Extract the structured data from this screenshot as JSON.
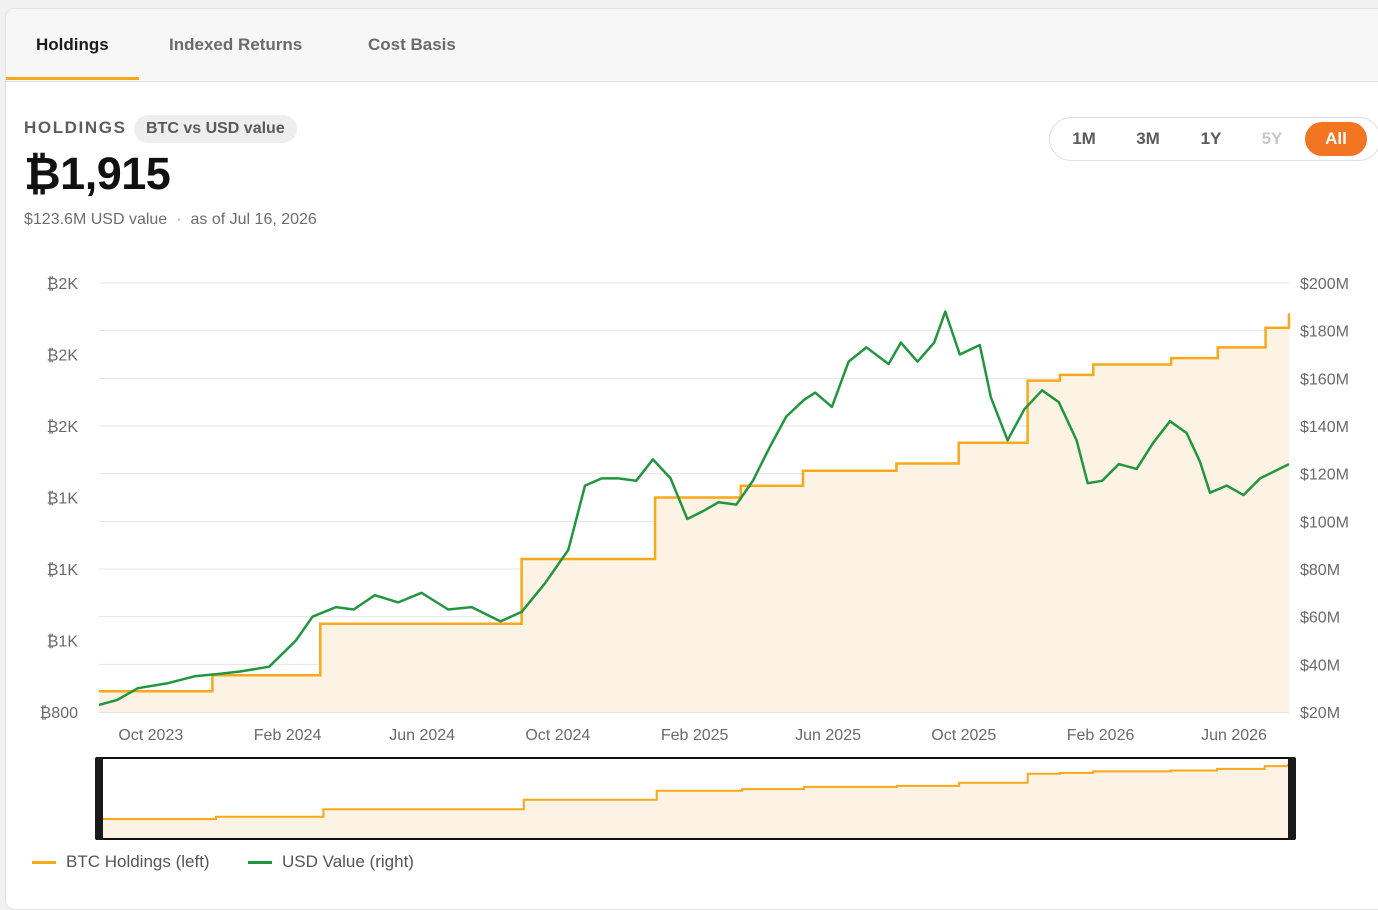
{
  "tabs": [
    "Holdings",
    "Indexed Returns",
    "Cost Basis"
  ],
  "header": {
    "label": "HOLDINGS",
    "badge": "BTC vs USD value",
    "value": "₿1,915",
    "usd_value": "$123.6M USD value",
    "separator": "·",
    "as_of": "as of Jul 16, 2026"
  },
  "ranges": {
    "items": [
      "1M",
      "3M",
      "1Y",
      "5Y",
      "All"
    ],
    "active": "All",
    "disabled": [
      "5Y"
    ]
  },
  "colors": {
    "btc_line": "#f7a81b",
    "btc_fill": "#fdf3e4",
    "usd_line": "#21963f",
    "active_range": "#f27521",
    "grid": "#e6e6e6"
  },
  "chart_data": {
    "type": "line",
    "x_ticks": [
      "Oct 2023",
      "Feb 2024",
      "Jun 2024",
      "Oct 2024",
      "Feb 2025",
      "Jun 2025",
      "Oct 2025",
      "Feb 2026",
      "Jun 2026"
    ],
    "y_left_ticks": [
      "₿800",
      "₿1K",
      "₿1K",
      "₿1K",
      "₿2K",
      "₿2K",
      "₿2K"
    ],
    "y_right_ticks": [
      "$20M",
      "$40M",
      "$60M",
      "$80M",
      "$100M",
      "$120M",
      "$140M",
      "$160M",
      "$180M",
      "$200M"
    ],
    "y_left_range": [
      800,
      2000
    ],
    "y_right_range": [
      20,
      200
    ],
    "grid": true,
    "series": [
      {
        "name": "BTC Holdings (left)",
        "axis": "left",
        "shape": "step",
        "points": [
          [
            "2023-09-15",
            858
          ],
          [
            "2023-12-26",
            858
          ],
          [
            "2023-12-26",
            903
          ],
          [
            "2024-04-01",
            903
          ],
          [
            "2024-04-01",
            1047
          ],
          [
            "2024-09-29",
            1047
          ],
          [
            "2024-09-29",
            1228
          ],
          [
            "2025-01-27",
            1228
          ],
          [
            "2025-01-27",
            1400
          ],
          [
            "2025-04-14",
            1400
          ],
          [
            "2025-04-14",
            1433
          ],
          [
            "2025-06-09",
            1433
          ],
          [
            "2025-06-09",
            1475
          ],
          [
            "2025-09-01",
            1475
          ],
          [
            "2025-09-01",
            1495
          ],
          [
            "2025-10-27",
            1495
          ],
          [
            "2025-10-27",
            1553
          ],
          [
            "2025-12-28",
            1553
          ],
          [
            "2025-12-28",
            1727
          ],
          [
            "2026-01-26",
            1727
          ],
          [
            "2026-01-26",
            1743
          ],
          [
            "2026-02-25",
            1743
          ],
          [
            "2026-02-25",
            1772
          ],
          [
            "2026-05-06",
            1772
          ],
          [
            "2026-05-06",
            1790
          ],
          [
            "2026-06-17",
            1790
          ],
          [
            "2026-06-17",
            1820
          ],
          [
            "2026-07-30",
            1820
          ],
          [
            "2026-07-30",
            1875
          ],
          [
            "2026-08-20",
            1875
          ],
          [
            "2026-08-20",
            1915
          ]
        ]
      },
      {
        "name": "USD Value (right)",
        "axis": "right",
        "shape": "line",
        "points": [
          [
            "2023-09-15",
            23
          ],
          [
            "2023-10-01",
            25
          ],
          [
            "2023-10-20",
            30
          ],
          [
            "2023-11-15",
            32
          ],
          [
            "2023-12-10",
            35
          ],
          [
            "2024-01-01",
            36
          ],
          [
            "2024-01-20",
            37
          ],
          [
            "2024-02-15",
            39
          ],
          [
            "2024-03-10",
            50
          ],
          [
            "2024-03-25",
            60
          ],
          [
            "2024-04-15",
            64
          ],
          [
            "2024-05-01",
            63
          ],
          [
            "2024-05-20",
            69
          ],
          [
            "2024-06-10",
            66
          ],
          [
            "2024-07-01",
            70
          ],
          [
            "2024-07-25",
            63
          ],
          [
            "2024-08-15",
            64
          ],
          [
            "2024-09-10",
            58
          ],
          [
            "2024-09-29",
            62
          ],
          [
            "2024-10-20",
            74
          ],
          [
            "2024-11-10",
            88
          ],
          [
            "2024-11-25",
            115
          ],
          [
            "2024-12-10",
            118
          ],
          [
            "2024-12-25",
            118
          ],
          [
            "2025-01-10",
            117
          ],
          [
            "2025-01-25",
            126
          ],
          [
            "2025-02-10",
            118
          ],
          [
            "2025-02-25",
            101
          ],
          [
            "2025-03-10",
            104
          ],
          [
            "2025-03-25",
            108
          ],
          [
            "2025-04-10",
            107
          ],
          [
            "2025-04-25",
            117
          ],
          [
            "2025-05-10",
            131
          ],
          [
            "2025-05-25",
            144
          ],
          [
            "2025-06-10",
            151
          ],
          [
            "2025-06-20",
            154
          ],
          [
            "2025-07-05",
            148
          ],
          [
            "2025-07-20",
            167
          ],
          [
            "2025-08-05",
            173
          ],
          [
            "2025-08-25",
            166
          ],
          [
            "2025-09-05",
            175
          ],
          [
            "2025-09-20",
            167
          ],
          [
            "2025-10-05",
            175
          ],
          [
            "2025-10-15",
            188
          ],
          [
            "2025-10-28",
            170
          ],
          [
            "2025-11-15",
            174
          ],
          [
            "2025-11-25",
            152
          ],
          [
            "2025-12-10",
            134
          ],
          [
            "2025-12-25",
            147
          ],
          [
            "2026-01-10",
            155
          ],
          [
            "2026-01-25",
            150
          ],
          [
            "2026-02-10",
            134
          ],
          [
            "2026-02-20",
            116
          ],
          [
            "2026-03-05",
            117
          ],
          [
            "2026-03-20",
            124
          ],
          [
            "2026-04-05",
            122
          ],
          [
            "2026-04-20",
            133
          ],
          [
            "2026-05-05",
            142
          ],
          [
            "2026-05-20",
            137
          ],
          [
            "2026-06-01",
            125
          ],
          [
            "2026-06-10",
            112
          ],
          [
            "2026-06-25",
            115
          ],
          [
            "2026-07-10",
            111
          ],
          [
            "2026-07-25",
            118
          ],
          [
            "2026-08-20",
            124
          ]
        ]
      }
    ]
  }
}
